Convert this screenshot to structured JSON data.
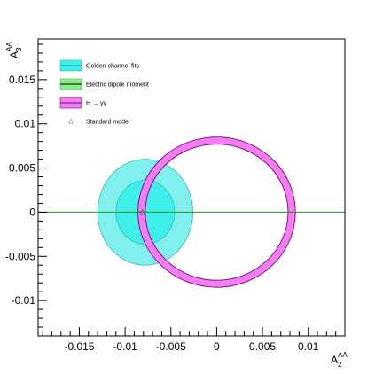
{
  "chart_data": {
    "type": "contour",
    "xlim": [
      -0.0195,
      0.014
    ],
    "ylim": [
      -0.014,
      0.0196
    ],
    "x_ticks": [
      -0.015,
      -0.01,
      -0.005,
      0,
      0.005,
      0.01
    ],
    "x_tick_labels": [
      "-0.015",
      "-0.01",
      "-0.005",
      "0",
      "0.005",
      "0.01"
    ],
    "y_ticks": [
      -0.01,
      -0.005,
      0,
      0.005,
      0.01,
      0.015
    ],
    "y_tick_labels": [
      "-0.01",
      "-0.005",
      "0",
      "0.005",
      "0.01",
      "0.015"
    ],
    "x_title": {
      "main": "A",
      "sup": "AA",
      "sub": "2"
    },
    "y_title": {
      "main": "A",
      "sup": "AA",
      "sub": "3"
    },
    "series": [
      {
        "name": "Golden channel fits",
        "kind": "ellipses",
        "center": [
          -0.0078,
          0
        ],
        "outer_radii": [
          0.0052,
          0.006
        ],
        "inner_radii": [
          0.0032,
          0.0036
        ],
        "outer_color": "#7ff0ee",
        "inner_color": "#3ff0ea",
        "edge_color": "#33bbbb"
      },
      {
        "name": "Electric dipole moment",
        "kind": "line",
        "y": 0,
        "color": "#2a8f2a",
        "legend_fill": "#88ee88"
      },
      {
        "name": "H → γγ",
        "kind": "ring",
        "center": [
          0,
          0
        ],
        "outer_radii": [
          0.0086,
          0.0085
        ],
        "inner_radii": [
          0.0078,
          0.0077
        ],
        "fill": "#f27ef2",
        "edge_color": "#800080"
      },
      {
        "name": "Standard model",
        "kind": "point",
        "x": -0.0081,
        "y": 0,
        "marker": "☆"
      }
    ]
  }
}
